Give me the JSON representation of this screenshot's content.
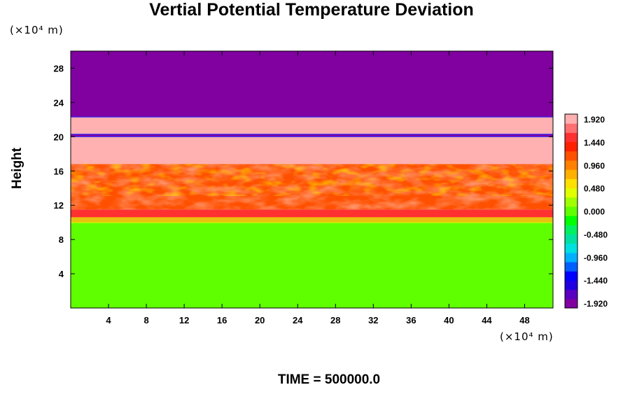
{
  "chart_data": {
    "type": "heatmap",
    "title": "Vertial Potential Temperature Deviation",
    "xlabel": "",
    "ylabel": "Height",
    "x_unit": "(×10⁴ m)",
    "y_unit": "(×10⁴ m)",
    "xlim": [
      0,
      51
    ],
    "ylim": [
      0,
      30
    ],
    "x_ticks": [
      4,
      8,
      12,
      16,
      20,
      24,
      28,
      32,
      36,
      40,
      44,
      48
    ],
    "y_ticks": [
      4,
      8,
      12,
      16,
      20,
      24,
      28
    ],
    "colorbar": {
      "min": -1.92,
      "max": 1.92,
      "labels": [
        "1.920",
        "1.440",
        "0.960",
        "0.480",
        "0.000",
        "-0.480",
        "-0.960",
        "-1.440",
        "-1.920"
      ],
      "colors": [
        "#8000a0",
        "#5a00c0",
        "#2000e0",
        "#0000ff",
        "#0060ff",
        "#00b0ff",
        "#00e0e0",
        "#00e0a0",
        "#00f060",
        "#00ff00",
        "#60ff00",
        "#a0ff00",
        "#e0ff00",
        "#ffe000",
        "#ffb000",
        "#ff8000",
        "#ff5000",
        "#ff2000",
        "#ff3030",
        "#ff7070",
        "#ffb0b0"
      ]
    },
    "layers": [
      {
        "from": 22.3,
        "to": 30,
        "value": -1.92
      },
      {
        "from": 20.3,
        "to": 22.3,
        "value": 1.92
      },
      {
        "from": 20.0,
        "to": 20.3,
        "value": -1.92
      },
      {
        "from": 16.8,
        "to": 20.0,
        "value": 1.92
      },
      {
        "from": 11.5,
        "to": 16.8,
        "value": 1.2
      },
      {
        "from": 10.0,
        "to": 11.5,
        "value": 1.6
      },
      {
        "from": 0,
        "to": 10.0,
        "value": 0.0
      }
    ],
    "time_label": "TIME = 500000.0"
  }
}
